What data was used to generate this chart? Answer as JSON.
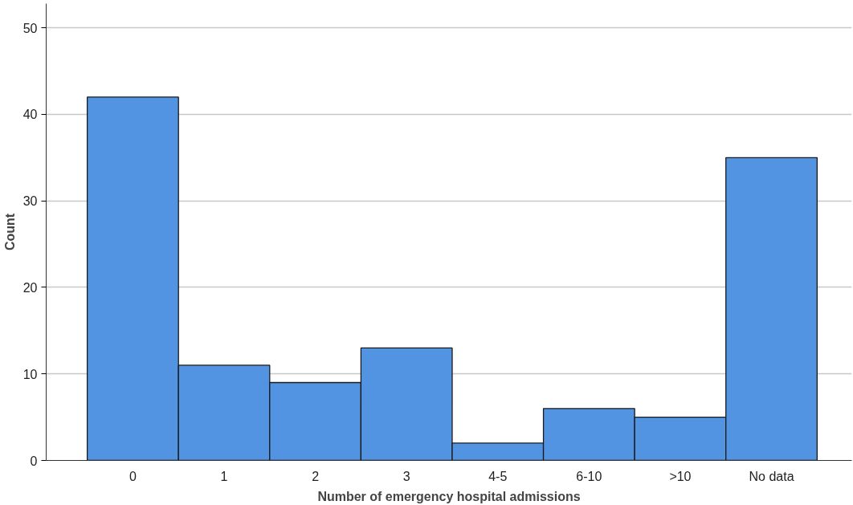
{
  "chart_data": {
    "type": "bar",
    "xlabel": "Number of emergency hospital admissions",
    "ylabel": "Count",
    "categories": [
      "0",
      "1",
      "2",
      "3",
      "4-5",
      "6-10",
      ">10",
      "No data"
    ],
    "values": [
      42,
      11,
      9,
      13,
      2,
      6,
      5,
      35
    ],
    "color": "#5294e2",
    "ylim": [
      0,
      52.8
    ],
    "yticks": [
      0,
      10,
      20,
      30,
      40,
      50
    ],
    "grid": "y"
  }
}
